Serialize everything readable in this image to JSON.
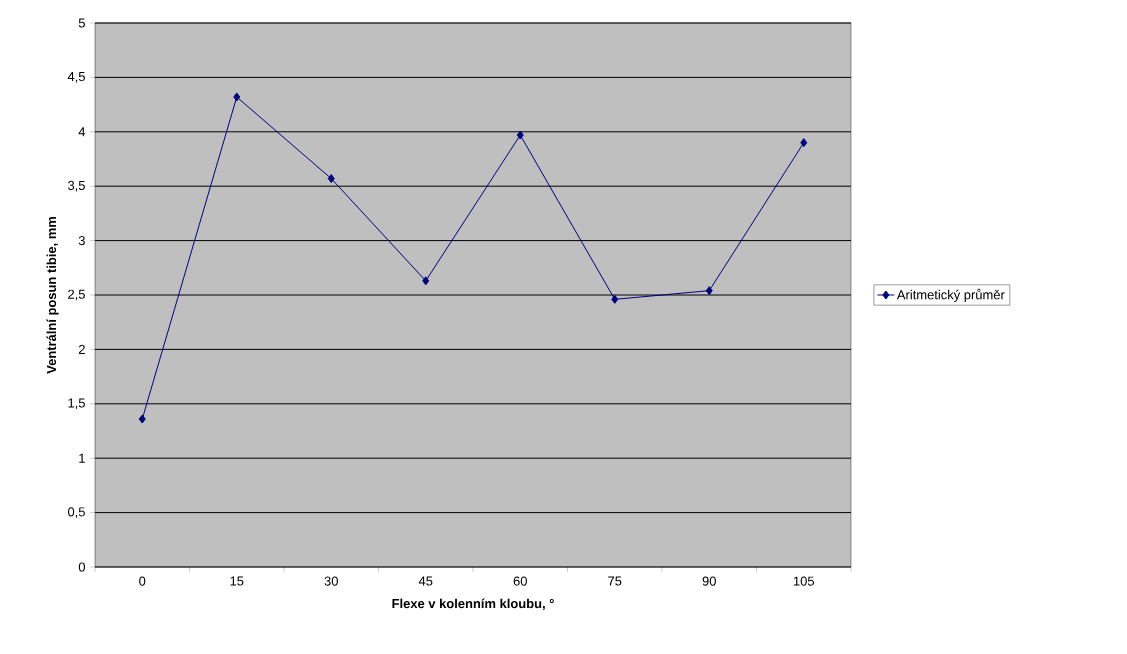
{
  "chart_data": {
    "type": "line",
    "xlabel": "Flexe v kolenním kloubu, °",
    "ylabel": "Ventrální posun tibie, mm",
    "categories": [
      "0",
      "15",
      "30",
      "45",
      "60",
      "75",
      "90",
      "105"
    ],
    "series": [
      {
        "name": "Aritmetický průměr",
        "color": "#000080",
        "values": [
          1.36,
          4.32,
          3.57,
          2.63,
          3.97,
          2.46,
          2.54,
          3.9
        ]
      }
    ],
    "ylim": [
      0,
      5
    ],
    "yticks": [
      0,
      {
        "value": 0.5,
        "label": "0,5"
      },
      1,
      {
        "value": 1.5,
        "label": "1,5"
      },
      2,
      {
        "value": 2.5,
        "label": "2,5"
      },
      3,
      {
        "value": 3.5,
        "label": "3,5"
      },
      4,
      {
        "value": 4.5,
        "label": "4,5"
      },
      5
    ],
    "grid": "y",
    "legend": "right",
    "marker": "diamond",
    "line_style": "solid"
  }
}
